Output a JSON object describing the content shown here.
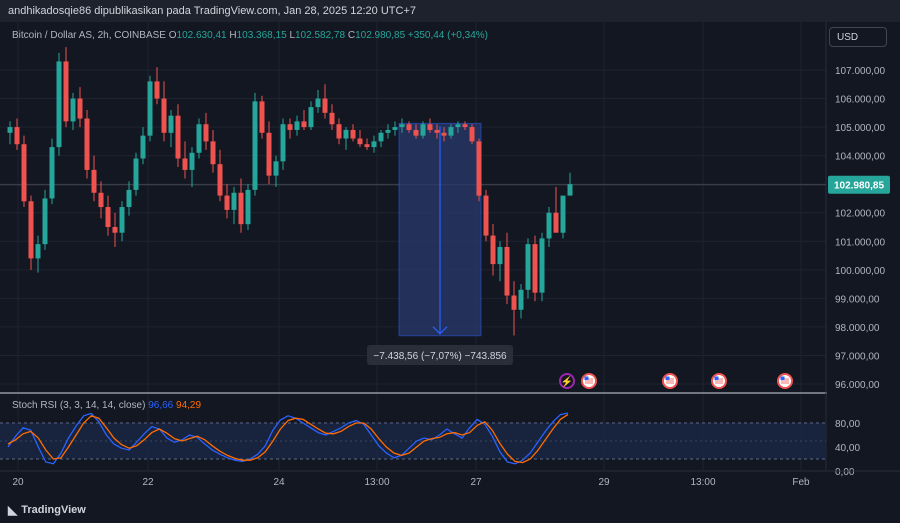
{
  "header": {
    "published": "andhikadosqie86 dipublikasikan pada TradingView.com, Jan 28, 2025 12:20 UTC+7"
  },
  "legend": {
    "symbol": "Bitcoin / Dollar AS, 2h, COINBASE",
    "o_label": "O",
    "o_value": "102.630,41",
    "h_label": "H",
    "h_value": "103.368,15",
    "l_label": "L",
    "l_value": "102.582,78",
    "c_label": "C",
    "c_value": "102.980,85",
    "change": "+350,44 (+0,34%)"
  },
  "currency": "USD",
  "price_axis": {
    "labels": [
      "107.000,00",
      "106.000,00",
      "105.000,00",
      "104.000,00",
      "102.980,85",
      "102.000,00",
      "101.000,00",
      "100.000,00",
      "99.000,00",
      "98.000,00",
      "97.000,00",
      "96.000,00"
    ],
    "current_price": "102.980,85"
  },
  "measure": {
    "label": "−7.438,56 (−7,07%) −743.856"
  },
  "stoch": {
    "name": "Stoch RSI",
    "params": "(3, 3, 14, 14, close)",
    "k_value": "96,66",
    "d_value": "94,29",
    "axis_labels": [
      "80,00",
      "40,00",
      "0,00"
    ]
  },
  "time_axis": {
    "labels": [
      "20",
      "22",
      "24",
      "13:00",
      "27",
      "29",
      "13:00",
      "Feb"
    ]
  },
  "footer": {
    "brand": "TradingView"
  },
  "colors": {
    "up": "#26a69a",
    "down": "#ef5350",
    "bg": "#131722",
    "k_line": "#2962ff",
    "d_line": "#ff6d00",
    "measure_fill": "#2a3a6e"
  },
  "chart_data": [
    {
      "type": "candlestick",
      "title": "Bitcoin / Dollar AS, 2h, COINBASE",
      "ylim": [
        96000,
        107800
      ],
      "candles": [
        [
          104.8,
          105.2,
          104.4,
          105.0
        ],
        [
          105.0,
          105.3,
          104.2,
          104.4
        ],
        [
          104.4,
          104.7,
          102.2,
          102.4
        ],
        [
          102.4,
          102.6,
          100.0,
          100.4
        ],
        [
          100.4,
          101.2,
          99.9,
          100.9
        ],
        [
          100.9,
          102.8,
          100.7,
          102.5
        ],
        [
          102.5,
          104.6,
          102.3,
          104.3
        ],
        [
          104.3,
          107.6,
          104.0,
          107.3
        ],
        [
          107.3,
          107.8,
          105.0,
          105.2
        ],
        [
          105.2,
          106.2,
          104.9,
          106.0
        ],
        [
          106.0,
          106.4,
          105.0,
          105.3
        ],
        [
          105.3,
          105.6,
          103.2,
          103.5
        ],
        [
          103.5,
          104.0,
          102.4,
          102.7
        ],
        [
          102.7,
          103.1,
          101.8,
          102.2
        ],
        [
          102.2,
          102.6,
          101.2,
          101.5
        ],
        [
          101.5,
          102.0,
          100.8,
          101.3
        ],
        [
          101.3,
          102.4,
          101.0,
          102.2
        ],
        [
          102.2,
          103.1,
          101.9,
          102.8
        ],
        [
          102.8,
          104.1,
          102.6,
          103.9
        ],
        [
          103.9,
          105.0,
          103.7,
          104.7
        ],
        [
          104.7,
          106.8,
          104.5,
          106.6
        ],
        [
          106.6,
          107.1,
          105.8,
          106.0
        ],
        [
          106.0,
          106.6,
          104.5,
          104.8
        ],
        [
          104.8,
          105.6,
          104.3,
          105.4
        ],
        [
          105.4,
          105.8,
          103.6,
          103.9
        ],
        [
          103.9,
          104.5,
          103.2,
          103.5
        ],
        [
          103.5,
          104.3,
          102.9,
          104.1
        ],
        [
          104.1,
          105.3,
          103.9,
          105.1
        ],
        [
          105.1,
          105.5,
          104.2,
          104.5
        ],
        [
          104.5,
          104.9,
          103.4,
          103.7
        ],
        [
          103.7,
          104.2,
          102.4,
          102.6
        ],
        [
          102.6,
          103.0,
          101.8,
          102.1
        ],
        [
          102.1,
          102.9,
          101.6,
          102.7
        ],
        [
          102.7,
          103.2,
          101.3,
          101.6
        ],
        [
          101.6,
          103.0,
          101.4,
          102.8
        ],
        [
          102.8,
          106.2,
          102.6,
          105.9
        ],
        [
          105.9,
          106.1,
          104.6,
          104.8
        ],
        [
          104.8,
          105.2,
          103.0,
          103.3
        ],
        [
          103.3,
          104.0,
          102.9,
          103.8
        ],
        [
          103.8,
          105.3,
          103.5,
          105.1
        ],
        [
          105.1,
          105.3,
          104.6,
          104.9
        ],
        [
          104.9,
          105.4,
          104.7,
          105.2
        ],
        [
          105.2,
          105.6,
          104.9,
          105.0
        ],
        [
          105.0,
          105.9,
          104.9,
          105.7
        ],
        [
          105.7,
          106.3,
          105.5,
          106.0
        ],
        [
          106.0,
          106.5,
          105.3,
          105.5
        ],
        [
          105.5,
          105.8,
          104.9,
          105.1
        ],
        [
          105.1,
          105.3,
          104.4,
          104.6
        ],
        [
          104.6,
          105.0,
          104.2,
          104.9
        ],
        [
          104.9,
          105.1,
          104.5,
          104.6
        ],
        [
          104.6,
          104.9,
          104.3,
          104.4
        ],
        [
          104.4,
          104.6,
          104.2,
          104.3
        ],
        [
          104.3,
          104.7,
          104.1,
          104.5
        ],
        [
          104.5,
          104.9,
          104.3,
          104.8
        ],
        [
          104.8,
          105.1,
          104.6,
          104.9
        ],
        [
          104.9,
          105.2,
          104.7,
          105.0
        ],
        [
          105.0,
          105.3,
          104.8,
          105.1
        ],
        [
          105.1,
          105.2,
          104.8,
          104.9
        ],
        [
          104.9,
          105.1,
          104.6,
          104.7
        ],
        [
          104.7,
          105.2,
          104.6,
          105.1
        ],
        [
          105.1,
          105.3,
          104.8,
          104.9
        ],
        [
          104.9,
          105.1,
          104.6,
          104.8
        ],
        [
          104.8,
          105.0,
          104.5,
          104.7
        ],
        [
          104.7,
          105.1,
          104.6,
          105.0
        ],
        [
          105.0,
          105.2,
          104.8,
          105.1
        ],
        [
          105.1,
          105.2,
          104.9,
          105.0
        ],
        [
          105.0,
          105.1,
          104.4,
          104.5
        ],
        [
          104.5,
          104.6,
          102.4,
          102.6
        ],
        [
          102.6,
          102.8,
          101.0,
          101.2
        ],
        [
          101.2,
          101.6,
          99.8,
          100.2
        ],
        [
          100.2,
          101.0,
          99.6,
          100.8
        ],
        [
          100.8,
          101.3,
          98.8,
          99.1
        ],
        [
          99.1,
          99.6,
          97.7,
          98.6
        ],
        [
          98.6,
          99.5,
          98.3,
          99.3
        ],
        [
          99.3,
          101.1,
          99.0,
          100.9
        ],
        [
          100.9,
          101.2,
          98.9,
          99.2
        ],
        [
          99.2,
          101.3,
          98.9,
          101.1
        ],
        [
          101.1,
          102.2,
          100.8,
          102.0
        ],
        [
          102.0,
          102.9,
          101.4,
          101.3
        ],
        [
          101.3,
          102.6,
          101.1,
          102.6
        ],
        [
          102.6,
          103.4,
          102.6,
          103.0
        ]
      ]
    },
    {
      "type": "line",
      "title": "Stoch RSI (3, 3, 14, 14, close)",
      "ylim": [
        0,
        100
      ],
      "hlines": [
        80,
        20
      ],
      "series": [
        {
          "name": "K",
          "values": [
            40,
            58,
            72,
            68,
            40,
            15,
            12,
            30,
            55,
            75,
            92,
            96,
            82,
            60,
            45,
            38,
            35,
            48,
            62,
            74,
            70,
            55,
            48,
            52,
            60,
            56,
            45,
            35,
            28,
            22,
            18,
            16,
            20,
            28,
            42,
            68,
            85,
            92,
            88,
            80,
            72,
            64,
            60,
            66,
            72,
            80,
            84,
            78,
            60,
            42,
            30,
            22,
            26,
            38,
            50,
            55,
            52,
            60,
            70,
            62,
            55,
            72,
            86,
            78,
            58,
            32,
            15,
            12,
            18,
            30,
            48,
            66,
            82,
            94,
            96.66
          ]
        },
        {
          "name": "D",
          "values": [
            45,
            52,
            62,
            66,
            55,
            35,
            20,
            22,
            40,
            60,
            80,
            92,
            88,
            72,
            55,
            44,
            38,
            42,
            52,
            64,
            70,
            63,
            54,
            50,
            54,
            58,
            52,
            42,
            33,
            26,
            21,
            18,
            18,
            22,
            32,
            50,
            70,
            84,
            88,
            86,
            78,
            70,
            63,
            62,
            66,
            74,
            80,
            80,
            70,
            54,
            40,
            30,
            26,
            30,
            40,
            50,
            54,
            56,
            62,
            64,
            60,
            64,
            76,
            82,
            68,
            46,
            28,
            16,
            14,
            20,
            34,
            52,
            70,
            86,
            94.29
          ]
        }
      ]
    }
  ]
}
